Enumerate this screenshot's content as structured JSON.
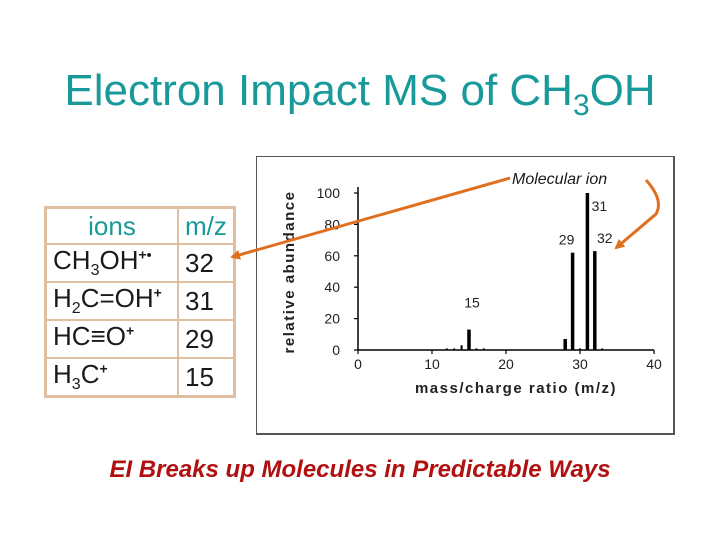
{
  "title": {
    "main": "Electron Impact MS of CH",
    "sub": "3",
    "tail": "OH"
  },
  "table": {
    "header_ions": "ions",
    "header_mz": "m/z",
    "rows": [
      {
        "ion_a": "CH",
        "ion_a_sub": "3",
        "ion_b": "OH",
        "charge": "+•",
        "mz": "32"
      },
      {
        "ion_a": "H",
        "ion_a_sub": "2",
        "ion_b": "C=OH",
        "charge": "+",
        "mz": "31"
      },
      {
        "ion_a": "HC≡O",
        "ion_a_sub": "",
        "ion_b": "",
        "charge": "+",
        "mz": "29"
      },
      {
        "ion_a": "H",
        "ion_a_sub": "3",
        "ion_b": "C",
        "charge": "+",
        "mz": "15"
      }
    ]
  },
  "annotation": {
    "molecular_ion": "Molecular ion",
    "arrow_color": "#e07020"
  },
  "caption": "EI Breaks up Molecules in Predictable Ways",
  "colors": {
    "title": "#199a9a",
    "caption": "#b01010",
    "table_border": "#e0bfa0",
    "bars": "#000000"
  },
  "chart_data": {
    "type": "bar",
    "xlabel": "mass/charge ratio (m/z)",
    "ylabel": "relative abundance",
    "xlim": [
      0,
      40
    ],
    "ylim": [
      0,
      100
    ],
    "xticks": [
      0,
      10,
      20,
      30,
      40
    ],
    "yticks": [
      0,
      20,
      40,
      60,
      80,
      100
    ],
    "x": [
      12,
      13,
      14,
      15,
      16,
      17,
      28,
      29,
      30,
      31,
      32,
      33
    ],
    "y": [
      1,
      1,
      3,
      13,
      1,
      1,
      7,
      62,
      1,
      100,
      63,
      1
    ],
    "peak_labels": [
      {
        "x": 15,
        "text": "15"
      },
      {
        "x": 29,
        "text": "29"
      },
      {
        "x": 31,
        "text": "31"
      },
      {
        "x": 32,
        "text": "32"
      }
    ]
  }
}
